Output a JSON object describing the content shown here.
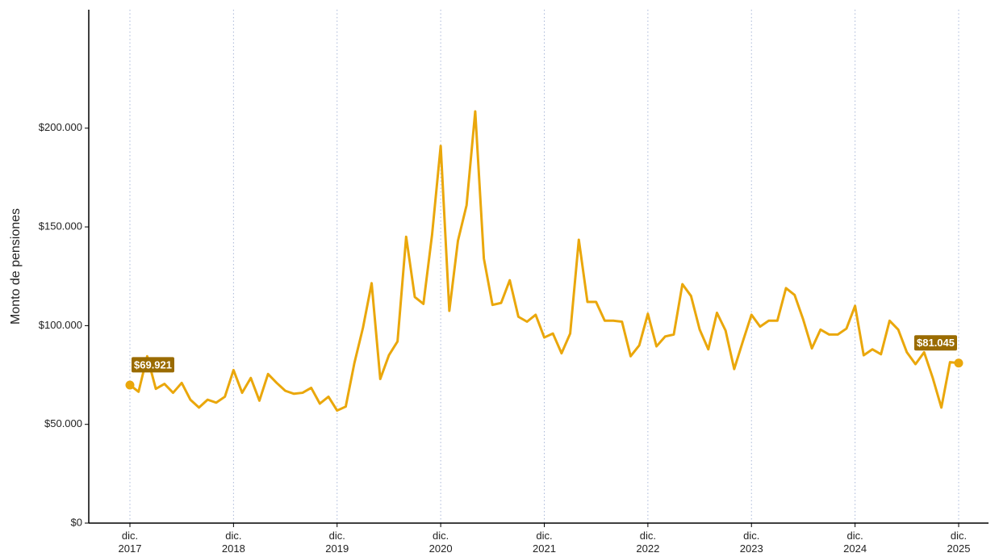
{
  "chart_data": {
    "type": "line",
    "y_label": "Monto de pensiones",
    "categories": [
      "dic.\n2017",
      null,
      null,
      null,
      null,
      null,
      null,
      null,
      null,
      null,
      null,
      null,
      "dic.\n2018",
      null,
      null,
      null,
      null,
      null,
      null,
      null,
      null,
      null,
      null,
      null,
      "dic.\n2019",
      null,
      null,
      null,
      null,
      null,
      null,
      null,
      null,
      null,
      null,
      null,
      "dic.\n2020",
      null,
      null,
      null,
      null,
      null,
      null,
      null,
      null,
      null,
      null,
      null,
      "dic.\n2021",
      null,
      null,
      null,
      null,
      null,
      null,
      null,
      null,
      null,
      null,
      null,
      "dic.\n2022",
      null,
      null,
      null,
      null,
      null,
      null,
      null,
      null,
      null,
      null,
      null,
      "dic.\n2023",
      null,
      null,
      null,
      null,
      null,
      null,
      null,
      null,
      null,
      null,
      null,
      "dic.\n2024",
      null,
      null,
      null,
      null,
      null,
      null,
      null,
      null,
      null,
      null,
      null,
      "dic.\n2025"
    ],
    "values": [
      69921,
      66500,
      84500,
      68000,
      70500,
      66000,
      71000,
      62500,
      58500,
      62500,
      61000,
      64000,
      77500,
      66000,
      73500,
      62000,
      75500,
      71000,
      67000,
      65500,
      66000,
      68500,
      60500,
      64000,
      57000,
      59000,
      81000,
      99000,
      121500,
      73000,
      85000,
      92000,
      145000,
      114500,
      111000,
      146000,
      191000,
      107500,
      143000,
      161000,
      208500,
      134000,
      110500,
      111500,
      123000,
      104500,
      102000,
      105500,
      94000,
      96000,
      86000,
      96000,
      143500,
      112000,
      112000,
      102500,
      102500,
      102000,
      84500,
      90000,
      106000,
      89500,
      94500,
      95500,
      121000,
      115000,
      98000,
      88000,
      106500,
      97500,
      78000,
      92000,
      105500,
      99500,
      102500,
      102500,
      119000,
      115500,
      103000,
      88500,
      98000,
      95500,
      95500,
      98500,
      110000,
      85000,
      88000,
      85500,
      102500,
      98000,
      86500,
      80500,
      86500,
      73500,
      58500,
      81500,
      81045
    ],
    "value_labels": [
      "$69.921",
      null,
      null,
      null,
      null,
      null,
      null,
      null,
      null,
      null,
      null,
      null,
      null,
      null,
      null,
      null,
      null,
      null,
      null,
      null,
      null,
      null,
      null,
      null,
      null,
      null,
      null,
      null,
      null,
      null,
      null,
      null,
      null,
      null,
      null,
      null,
      null,
      null,
      null,
      null,
      null,
      null,
      null,
      null,
      null,
      null,
      null,
      null,
      null,
      null,
      null,
      null,
      null,
      null,
      null,
      null,
      null,
      null,
      null,
      null,
      null,
      null,
      null,
      null,
      null,
      null,
      null,
      null,
      null,
      null,
      null,
      null,
      null,
      null,
      null,
      null,
      null,
      null,
      null,
      null,
      null,
      null,
      null,
      null,
      null,
      null,
      null,
      null,
      null,
      null,
      null,
      null,
      null,
      null,
      null,
      null,
      "$81.045"
    ],
    "color": "#eaa70b",
    "label_color": "#9a6b00",
    "ylim": [
      0,
      260000
    ],
    "yticks": [
      {
        "value": 0,
        "label": "$0"
      },
      {
        "value": 50000,
        "label": "$50.000"
      },
      {
        "value": 100000,
        "label": "$100.000"
      },
      {
        "value": 150000,
        "label": "$150.000"
      },
      {
        "value": 200000,
        "label": "$200.000"
      }
    ],
    "x_grid": true
  }
}
